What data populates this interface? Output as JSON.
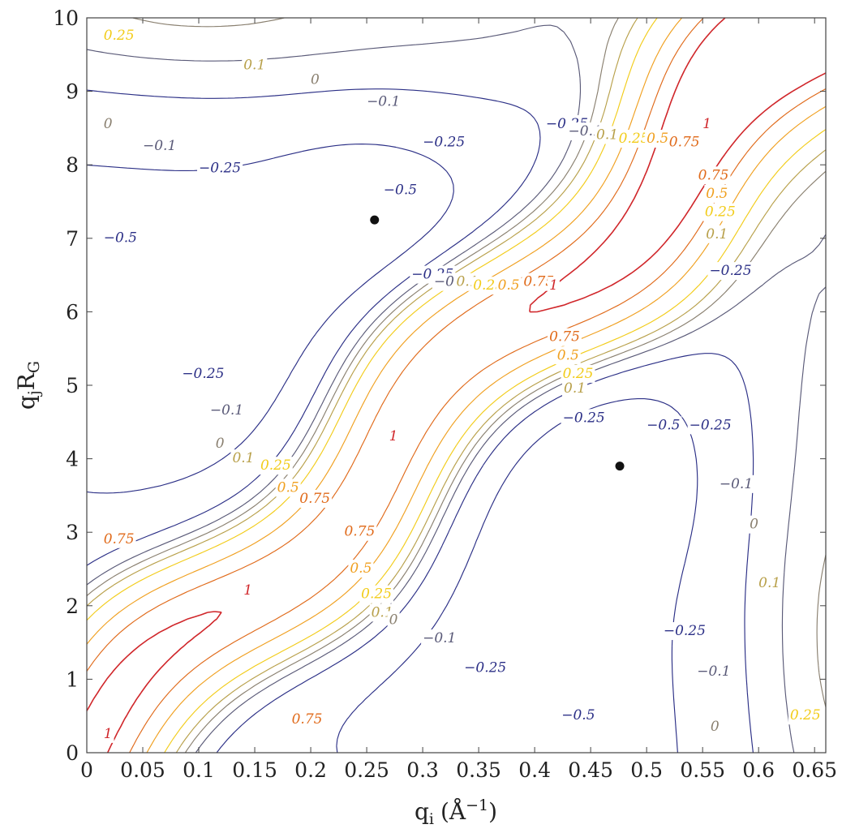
{
  "chart_data": {
    "type": "contour",
    "xlabel": "q",
    "xlabel_sub": "i",
    "xlabel_unit": "(Å",
    "xlabel_unit_sup": "−1",
    "xlabel_unit_close": ")",
    "ylabel": "q",
    "ylabel_sub1": "j",
    "ylabel_mid": "R",
    "ylabel_sub2": "G",
    "xlim": [
      0,
      0.66
    ],
    "ylim": [
      0,
      10
    ],
    "xticks": [
      0,
      0.05,
      0.1,
      0.15,
      0.2,
      0.25,
      0.3,
      0.35,
      0.4,
      0.45,
      0.5,
      0.55,
      0.6,
      0.65
    ],
    "xtick_labels": [
      "0",
      "0.05",
      "0.1",
      "0.15",
      "0.2",
      "0.25",
      "0.3",
      "0.35",
      "0.4",
      "0.45",
      "0.5",
      "0.55",
      "0.6",
      "0.65"
    ],
    "yticks": [
      0,
      1,
      2,
      3,
      4,
      5,
      6,
      7,
      8,
      9,
      10
    ],
    "ytick_labels": [
      "0",
      "1",
      "2",
      "3",
      "4",
      "5",
      "6",
      "7",
      "8",
      "9",
      "10"
    ],
    "levels": [
      -0.5,
      -0.25,
      -0.1,
      0,
      0.1,
      0.25,
      0.5,
      0.75,
      1
    ],
    "level_colors": {
      "-0.5": "#2b2f86",
      "-0.25": "#2b2f86",
      "-0.1": "#5a5a78",
      "0": "#8a8070",
      "0.1": "#b8a04a",
      "0.25": "#f2cc1a",
      "0.5": "#f0a020",
      "0.75": "#e06a1a",
      "1": "#d0262a"
    },
    "minima_markers": [
      {
        "x": 0.257,
        "y": 7.25
      },
      {
        "x": 0.476,
        "y": 3.9
      }
    ],
    "contour_labels": [
      {
        "text": "0.25",
        "x": 0.015,
        "y": 9.7,
        "level": "0.25"
      },
      {
        "text": "0.1",
        "x": 0.14,
        "y": 9.3,
        "level": "0.1"
      },
      {
        "text": "0",
        "x": 0.2,
        "y": 9.1,
        "level": "0"
      },
      {
        "text": "0",
        "x": 0.015,
        "y": 8.5,
        "level": "0"
      },
      {
        "text": "−0.1",
        "x": 0.25,
        "y": 8.8,
        "level": "-0.1"
      },
      {
        "text": "−0.1",
        "x": 0.05,
        "y": 8.2,
        "level": "-0.1"
      },
      {
        "text": "−0.25",
        "x": 0.3,
        "y": 8.25,
        "level": "-0.25"
      },
      {
        "text": "−0.25",
        "x": 0.1,
        "y": 7.9,
        "level": "-0.25"
      },
      {
        "text": "−0.5",
        "x": 0.265,
        "y": 7.6,
        "level": "-0.5"
      },
      {
        "text": "−0.5",
        "x": 0.015,
        "y": 6.95,
        "level": "-0.5"
      },
      {
        "text": "−0.25",
        "x": 0.41,
        "y": 8.5,
        "level": "-0.25"
      },
      {
        "text": "−0.1",
        "x": 0.43,
        "y": 8.4,
        "level": "-0.1"
      },
      {
        "text": "0.1",
        "x": 0.455,
        "y": 8.35,
        "level": "0.1"
      },
      {
        "text": "0.25",
        "x": 0.475,
        "y": 8.3,
        "level": "0.25"
      },
      {
        "text": "0.5",
        "x": 0.5,
        "y": 8.3,
        "level": "0.5"
      },
      {
        "text": "0.75",
        "x": 0.52,
        "y": 8.25,
        "level": "0.75"
      },
      {
        "text": "1",
        "x": 0.55,
        "y": 8.5,
        "level": "1"
      },
      {
        "text": "0.75",
        "x": 0.546,
        "y": 7.8,
        "level": "0.75"
      },
      {
        "text": "0.5",
        "x": 0.553,
        "y": 7.55,
        "level": "0.5"
      },
      {
        "text": "0.25",
        "x": 0.552,
        "y": 7.3,
        "level": "0.25"
      },
      {
        "text": "0.1",
        "x": 0.553,
        "y": 7.0,
        "level": "0.1"
      },
      {
        "text": "−0.25",
        "x": 0.556,
        "y": 6.5,
        "level": "-0.25"
      },
      {
        "text": "−0.25",
        "x": 0.29,
        "y": 6.45,
        "level": "-0.25"
      },
      {
        "text": "−0.1",
        "x": 0.31,
        "y": 6.35,
        "level": "-0.1"
      },
      {
        "text": "0.1",
        "x": 0.33,
        "y": 6.35,
        "level": "0.1"
      },
      {
        "text": "0.25",
        "x": 0.345,
        "y": 6.3,
        "level": "0.25"
      },
      {
        "text": "0.5",
        "x": 0.367,
        "y": 6.3,
        "level": "0.5"
      },
      {
        "text": "0.75",
        "x": 0.39,
        "y": 6.35,
        "level": "0.75"
      },
      {
        "text": "1",
        "x": 0.413,
        "y": 6.3,
        "level": "1"
      },
      {
        "text": "−0.25",
        "x": 0.085,
        "y": 5.1,
        "level": "-0.25"
      },
      {
        "text": "−0.1",
        "x": 0.11,
        "y": 4.6,
        "level": "-0.1"
      },
      {
        "text": "0",
        "x": 0.115,
        "y": 4.15,
        "level": "0"
      },
      {
        "text": "0.1",
        "x": 0.13,
        "y": 3.95,
        "level": "0.1"
      },
      {
        "text": "0.25",
        "x": 0.155,
        "y": 3.85,
        "level": "0.25"
      },
      {
        "text": "0.5",
        "x": 0.17,
        "y": 3.55,
        "level": "0.5"
      },
      {
        "text": "0.75",
        "x": 0.19,
        "y": 3.4,
        "level": "0.75"
      },
      {
        "text": "0.75",
        "x": 0.015,
        "y": 2.85,
        "level": "0.75"
      },
      {
        "text": "1",
        "x": 0.27,
        "y": 4.25,
        "level": "1"
      },
      {
        "text": "1",
        "x": 0.14,
        "y": 2.15,
        "level": "1"
      },
      {
        "text": "1",
        "x": 0.015,
        "y": 0.2,
        "level": "1"
      },
      {
        "text": "0.75",
        "x": 0.413,
        "y": 5.6,
        "level": "0.75"
      },
      {
        "text": "0.5",
        "x": 0.42,
        "y": 5.35,
        "level": "0.5"
      },
      {
        "text": "0.25",
        "x": 0.425,
        "y": 5.1,
        "level": "0.25"
      },
      {
        "text": "0.1",
        "x": 0.426,
        "y": 4.9,
        "level": "0.1"
      },
      {
        "text": "−0.25",
        "x": 0.425,
        "y": 4.5,
        "level": "-0.25"
      },
      {
        "text": "−0.5",
        "x": 0.5,
        "y": 4.4,
        "level": "-0.5"
      },
      {
        "text": "−0.25",
        "x": 0.538,
        "y": 4.4,
        "level": "-0.25"
      },
      {
        "text": "−0.1",
        "x": 0.565,
        "y": 3.6,
        "level": "-0.1"
      },
      {
        "text": "0",
        "x": 0.592,
        "y": 3.05,
        "level": "0"
      },
      {
        "text": "0.1",
        "x": 0.6,
        "y": 2.25,
        "level": "0.1"
      },
      {
        "text": "0.75",
        "x": 0.23,
        "y": 2.95,
        "level": "0.75"
      },
      {
        "text": "0.5",
        "x": 0.235,
        "y": 2.45,
        "level": "0.5"
      },
      {
        "text": "0.25",
        "x": 0.245,
        "y": 2.1,
        "level": "0.25"
      },
      {
        "text": "0.1",
        "x": 0.254,
        "y": 1.85,
        "level": "0.1"
      },
      {
        "text": "0",
        "x": 0.27,
        "y": 1.75,
        "level": "0"
      },
      {
        "text": "−0.1",
        "x": 0.3,
        "y": 1.5,
        "level": "-0.1"
      },
      {
        "text": "−0.25",
        "x": 0.337,
        "y": 1.1,
        "level": "-0.25"
      },
      {
        "text": "−0.25",
        "x": 0.515,
        "y": 1.6,
        "level": "-0.25"
      },
      {
        "text": "−0.1",
        "x": 0.545,
        "y": 1.05,
        "level": "-0.1"
      },
      {
        "text": "0",
        "x": 0.557,
        "y": 0.3,
        "level": "0"
      },
      {
        "text": "0.25",
        "x": 0.628,
        "y": 0.45,
        "level": "0.25"
      },
      {
        "text": "−0.5",
        "x": 0.424,
        "y": 0.45,
        "level": "-0.5"
      },
      {
        "text": "0.75",
        "x": 0.183,
        "y": 0.4,
        "level": "0.75"
      }
    ]
  }
}
